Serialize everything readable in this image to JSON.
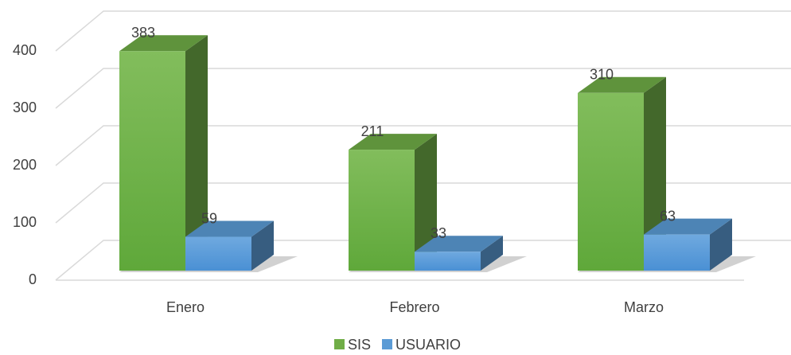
{
  "chart_data": {
    "type": "bar3d",
    "categories": [
      "Enero",
      "Febrero",
      "Marzo"
    ],
    "series": [
      {
        "name": "SIS",
        "color": "#70ad47",
        "values": [
          383,
          211,
          310
        ]
      },
      {
        "name": "USUARIO",
        "color": "#5b9bd5",
        "values": [
          59,
          33,
          63
        ]
      }
    ],
    "ylim": [
      0,
      400
    ],
    "yticks": [
      0,
      100,
      200,
      300,
      400
    ],
    "grid": true,
    "legend": "bottom"
  }
}
